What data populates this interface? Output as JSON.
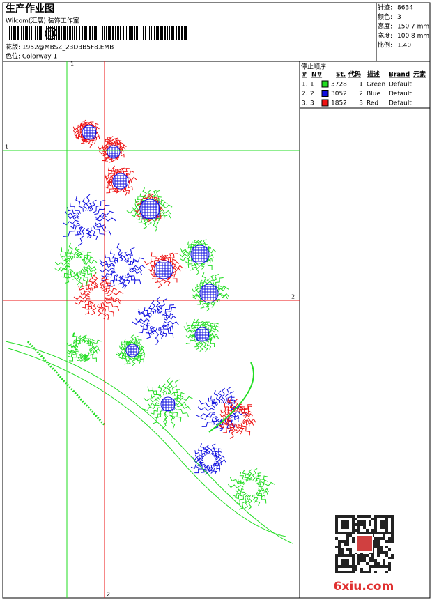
{
  "header": {
    "title": "生产作业图",
    "company": "Wilcom(汇展) 装饰工作室",
    "barcode_text": "@",
    "design": "花版: 1952@MBSZ_23D3B5F8.EMB",
    "colorway": "色位: Colorway 1"
  },
  "info": [
    {
      "label": "针迹:",
      "value": "8634"
    },
    {
      "label": "颜色:",
      "value": "3"
    },
    {
      "label": "高度:",
      "value": "150.7 mm"
    },
    {
      "label": "宽度:",
      "value": "100.8 mm"
    },
    {
      "label": "比例:",
      "value": "1.40"
    }
  ],
  "stop_sequence": {
    "title": "停止顺序:",
    "columns": [
      "#",
      "N#",
      "St.",
      "代码",
      "描述",
      "Brand",
      "元素"
    ],
    "rows": [
      {
        "index": "1.",
        "n": 1,
        "color": "#22dd22",
        "stitches": 3728,
        "code": 1,
        "desc": "Green",
        "brand": "Default"
      },
      {
        "index": "2.",
        "n": 2,
        "color": "#1010e0",
        "stitches": 3052,
        "code": 2,
        "desc": "Blue",
        "brand": "Default"
      },
      {
        "index": "3.",
        "n": 3,
        "color": "#ee1111",
        "stitches": 1852,
        "code": 3,
        "desc": "Red",
        "brand": "Default"
      }
    ]
  },
  "crosshairs": {
    "vertical_1": "1",
    "vertical_2": "2",
    "horizontal_1": "1",
    "horizontal_2": "2"
  },
  "watermark": "6xiu.com"
}
